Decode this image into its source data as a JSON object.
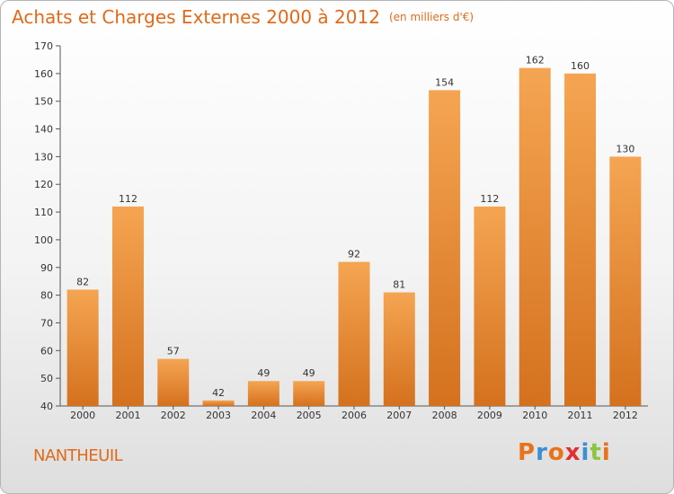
{
  "header": {
    "title": "Achats et Charges Externes 2000 à 2012",
    "unit": "(en milliers d'€)"
  },
  "footer": {
    "commune": "NANTHEUIL",
    "logo_text": "Proxiti"
  },
  "colors": {
    "accent": "#e06a1a",
    "bar_top": "#f5a552",
    "bar_bottom": "#d4711e",
    "logo_letters": [
      "#e8731a",
      "#3b8fd4",
      "#e8731a",
      "#e03030",
      "#3b8fd4",
      "#8cc63f",
      "#e8731a"
    ]
  },
  "chart_data": {
    "type": "bar",
    "title": "Achats et Charges Externes 2000 à 2012",
    "subtitle": "(en milliers d'€)",
    "categories": [
      "2000",
      "2001",
      "2002",
      "2003",
      "2004",
      "2005",
      "2006",
      "2007",
      "2008",
      "2009",
      "2010",
      "2011",
      "2012"
    ],
    "values": [
      82,
      112,
      57,
      42,
      49,
      49,
      92,
      81,
      154,
      112,
      162,
      160,
      130
    ],
    "ylim": [
      40,
      170
    ],
    "yticks": [
      40,
      50,
      60,
      70,
      80,
      90,
      100,
      110,
      120,
      130,
      140,
      150,
      160,
      170
    ],
    "grid": false,
    "data_labels": true
  }
}
